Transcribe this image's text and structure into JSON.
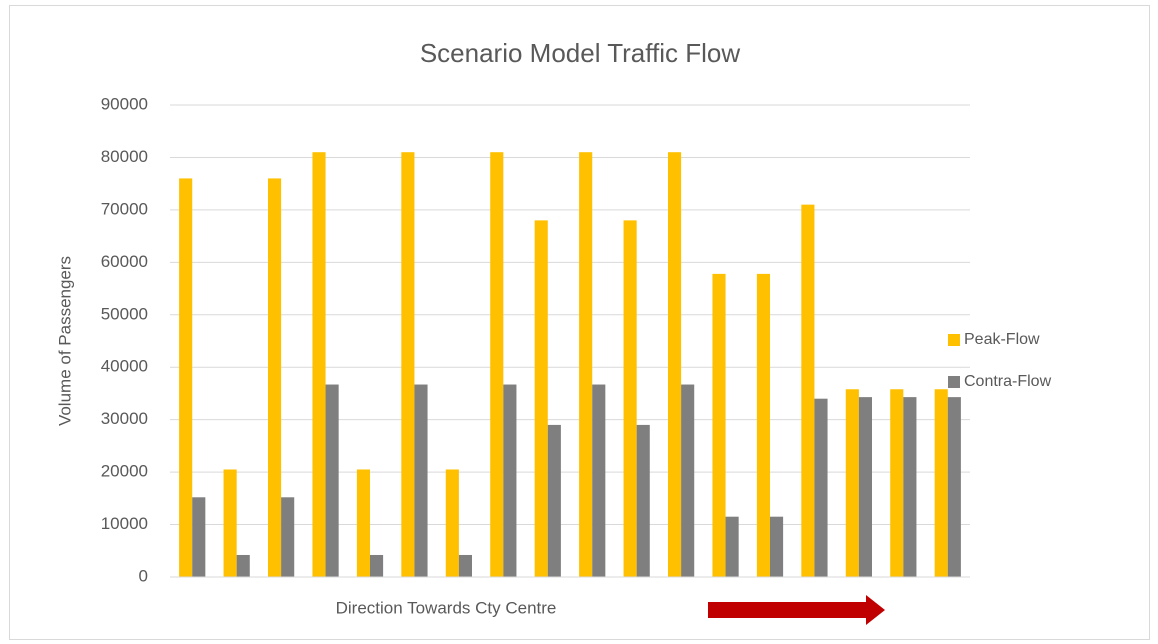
{
  "chart_data": {
    "type": "bar",
    "title": "Scenario Model Traffic Flow",
    "ylabel": "Volume of Passengers",
    "xlabel": "Direction Towards Cty Centre",
    "categories": [
      null,
      null,
      null,
      null,
      null,
      null,
      null,
      null,
      null,
      null,
      null,
      null,
      null,
      null,
      null,
      null,
      null,
      null
    ],
    "series": [
      {
        "name": "Peak-Flow",
        "color": "#ffc000",
        "values": [
          76000,
          20500,
          76000,
          81000,
          20500,
          81000,
          20500,
          81000,
          68000,
          81000,
          68000,
          81000,
          57800,
          57800,
          71000,
          35800,
          35800,
          35800
        ]
      },
      {
        "name": "Contra-Flow",
        "color": "#7f7f7f",
        "values": [
          15200,
          4200,
          15200,
          36700,
          4200,
          36700,
          4200,
          36700,
          29000,
          36700,
          29000,
          36700,
          11500,
          11500,
          34000,
          34300,
          34300,
          34300
        ]
      }
    ],
    "ylim": [
      0,
      90000
    ],
    "yticks": [
      0,
      10000,
      20000,
      30000,
      40000,
      50000,
      60000,
      70000,
      80000,
      90000
    ],
    "grid": true,
    "legend": "right"
  }
}
